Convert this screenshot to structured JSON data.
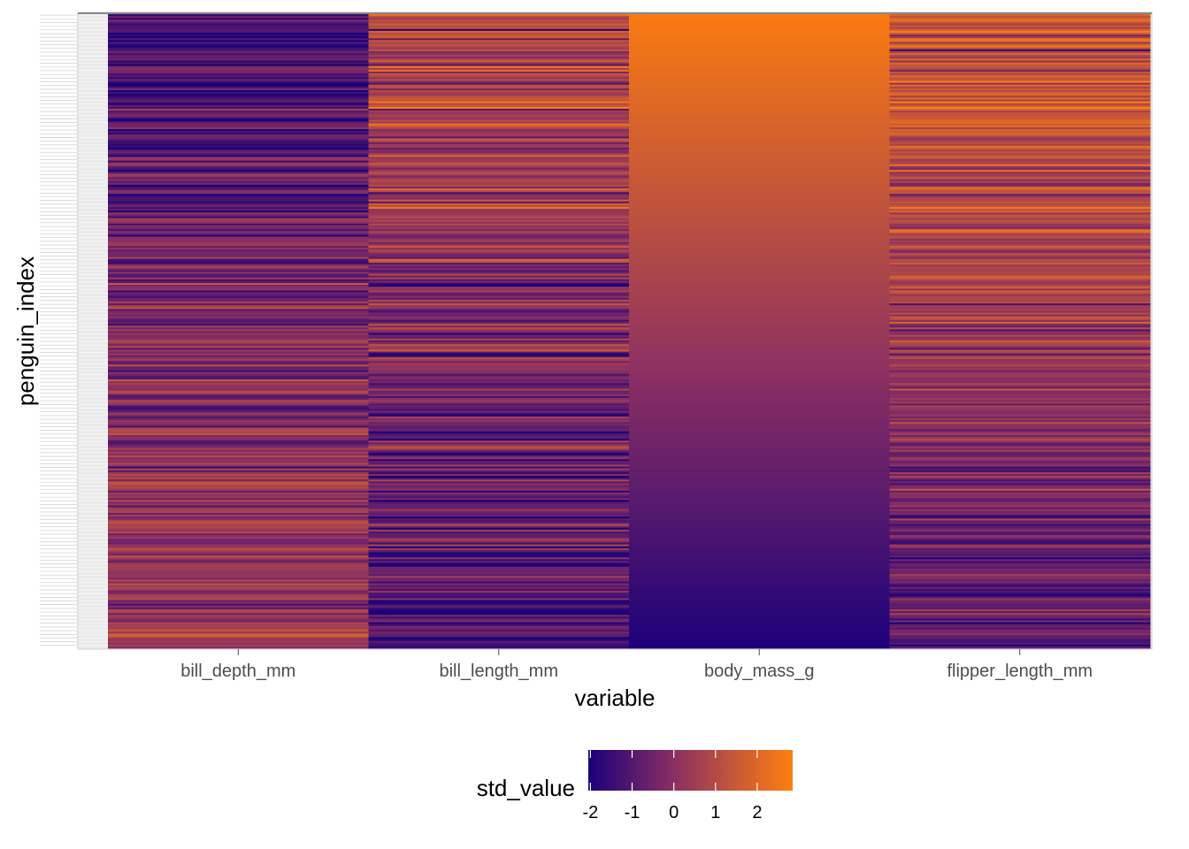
{
  "chart_data": {
    "type": "heatmap",
    "title": "",
    "xlabel": "variable",
    "ylabel": "penguin_index",
    "categories": [
      "bill_depth_mm",
      "bill_length_mm",
      "body_mass_g",
      "flipper_length_mm"
    ],
    "y_rows": 342,
    "y_tick_labels_note": "",
    "color_scale": {
      "low": "#1a007a",
      "mid": "#8a2f63",
      "high": "#ff7f0e",
      "domain": [
        -2.05,
        2.85
      ]
    },
    "legend": {
      "title": "std_value",
      "position": "bottom",
      "ticks": [
        -2,
        -1,
        0,
        1,
        2
      ],
      "tick_labels": [
        "-2",
        "-1",
        "0",
        "1",
        "2"
      ]
    },
    "series_profile": [
      {
        "name": "bill_depth_mm",
        "start": -1.3,
        "end": 0.6,
        "noise": 0.75
      },
      {
        "name": "bill_length_mm",
        "start": 1.0,
        "end": -1.3,
        "noise": 0.8
      },
      {
        "name": "body_mass_g",
        "start": 2.7,
        "end": -2.0,
        "noise": 0.02
      },
      {
        "name": "flipper_length_mm",
        "start": 1.6,
        "end": -0.9,
        "noise": 0.75
      }
    ],
    "grid": true
  }
}
